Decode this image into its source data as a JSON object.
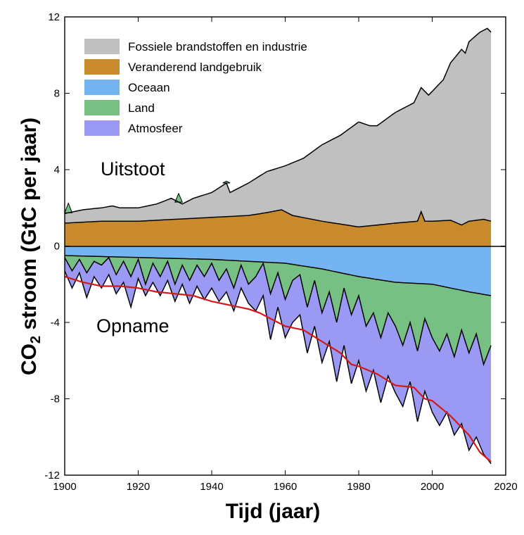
{
  "chart_data": {
    "type": "area",
    "title": "",
    "xlabel": "Tijd (jaar)",
    "ylabel_main": "CO",
    "ylabel_sub": "2",
    "ylabel_rest": " stroom (GtC per jaar)",
    "xlim": [
      1900,
      2020
    ],
    "ylim": [
      -12,
      12
    ],
    "xticks": [
      1900,
      1920,
      1940,
      1960,
      1980,
      2000,
      2020
    ],
    "yticks": [
      -12,
      -8,
      -4,
      0,
      4,
      8,
      12
    ],
    "legend": [
      {
        "name": "Fossiele brandstoffen en industrie",
        "color": "#c0c0c0"
      },
      {
        "name": "Veranderend landgebruik",
        "color": "#c88a2a"
      },
      {
        "name": "Oceaan",
        "color": "#75b4f2"
      },
      {
        "name": "Land",
        "color": "#77c083"
      },
      {
        "name": "Atmosfeer",
        "color": "#9a9af5"
      }
    ],
    "annotations": {
      "emissions": "Uitstoot",
      "uptake": "Opname"
    },
    "land_use_change": {
      "x": [
        1900,
        1910,
        1920,
        1930,
        1940,
        1950,
        1955,
        1959,
        1962,
        1970,
        1980,
        1990,
        1996,
        1997,
        1998,
        2000,
        2005,
        2008,
        2010,
        2014,
        2016
      ],
      "y": [
        1.2,
        1.3,
        1.3,
        1.4,
        1.5,
        1.6,
        1.75,
        1.9,
        1.6,
        1.3,
        1.0,
        1.2,
        1.3,
        1.8,
        1.3,
        1.3,
        1.35,
        1.1,
        1.3,
        1.4,
        1.3
      ]
    },
    "total_emissions": {
      "x": [
        1900,
        1905,
        1910,
        1913,
        1915,
        1920,
        1925,
        1929,
        1932,
        1935,
        1940,
        1944,
        1945,
        1950,
        1955,
        1960,
        1965,
        1970,
        1975,
        1980,
        1983,
        1985,
        1990,
        1995,
        1997,
        1999,
        2000,
        2003,
        2005,
        2008,
        2009,
        2010,
        2013,
        2015,
        2016
      ],
      "y": [
        1.7,
        1.9,
        2.0,
        2.1,
        2.0,
        2.0,
        2.2,
        2.5,
        2.2,
        2.5,
        2.8,
        3.3,
        2.8,
        3.3,
        3.9,
        4.2,
        4.6,
        5.3,
        5.8,
        6.5,
        6.3,
        6.3,
        7.0,
        7.5,
        8.3,
        7.9,
        8.1,
        8.7,
        9.6,
        10.3,
        10.1,
        10.7,
        11.2,
        11.4,
        11.2
      ]
    },
    "ocean_sink": {
      "x": [
        1900,
        1920,
        1940,
        1960,
        1970,
        1980,
        1990,
        2000,
        2010,
        2016
      ],
      "y": [
        -0.5,
        -0.6,
        -0.7,
        -0.9,
        -1.2,
        -1.6,
        -1.9,
        -2.0,
        -2.4,
        -2.6
      ]
    },
    "ocean_land_sink": {
      "x": [
        1900,
        1902,
        1904,
        1906,
        1908,
        1910,
        1912,
        1914,
        1916,
        1918,
        1920,
        1922,
        1924,
        1926,
        1928,
        1930,
        1932,
        1934,
        1936,
        1938,
        1940,
        1942,
        1944,
        1946,
        1948,
        1950,
        1952,
        1954,
        1956,
        1958,
        1960,
        1962,
        1964,
        1966,
        1968,
        1970,
        1972,
        1974,
        1976,
        1978,
        1980,
        1982,
        1984,
        1986,
        1988,
        1990,
        1992,
        1994,
        1996,
        1998,
        2000,
        2002,
        2004,
        2006,
        2008,
        2010,
        2012,
        2014,
        2016
      ],
      "y": [
        -0.6,
        -1.3,
        -0.7,
        -1.4,
        -0.8,
        -1.0,
        -0.6,
        -1.5,
        -0.8,
        -1.6,
        -0.7,
        -2.0,
        -0.9,
        -1.6,
        -0.8,
        -2.0,
        -1.0,
        -1.8,
        -1.0,
        -1.6,
        -0.9,
        -1.8,
        -1.2,
        -2.2,
        -1.0,
        -2.0,
        -1.6,
        -0.9,
        -2.5,
        -1.4,
        -2.8,
        -1.8,
        -1.5,
        -3.2,
        -1.8,
        -3.5,
        -2.4,
        -4.0,
        -2.2,
        -3.6,
        -2.6,
        -4.2,
        -3.5,
        -4.8,
        -3.5,
        -4.2,
        -5.2,
        -4.0,
        -5.5,
        -3.8,
        -4.8,
        -5.5,
        -4.6,
        -5.8,
        -4.4,
        -5.6,
        -4.6,
        -6.2,
        -5.2
      ]
    },
    "total_sink": {
      "x": [
        1900,
        1902,
        1904,
        1906,
        1908,
        1910,
        1912,
        1914,
        1916,
        1918,
        1920,
        1922,
        1924,
        1926,
        1928,
        1930,
        1932,
        1934,
        1936,
        1938,
        1940,
        1942,
        1944,
        1946,
        1948,
        1950,
        1952,
        1954,
        1956,
        1958,
        1960,
        1962,
        1964,
        1966,
        1968,
        1970,
        1972,
        1974,
        1976,
        1978,
        1980,
        1982,
        1984,
        1986,
        1988,
        1990,
        1992,
        1994,
        1996,
        1998,
        2000,
        2002,
        2004,
        2006,
        2008,
        2010,
        2012,
        2014,
        2016
      ],
      "y": [
        -1.3,
        -2.2,
        -1.4,
        -2.7,
        -1.6,
        -2.2,
        -1.5,
        -2.5,
        -1.9,
        -3.2,
        -1.7,
        -2.6,
        -1.9,
        -2.6,
        -1.8,
        -2.9,
        -2.0,
        -3.0,
        -2.1,
        -2.8,
        -2.2,
        -2.9,
        -2.4,
        -3.4,
        -2.2,
        -3.0,
        -3.4,
        -2.6,
        -4.9,
        -3.2,
        -4.8,
        -4.0,
        -3.6,
        -5.6,
        -4.2,
        -6.1,
        -5.0,
        -7.1,
        -5.2,
        -7.2,
        -6.0,
        -7.6,
        -6.5,
        -8.2,
        -6.8,
        -7.7,
        -8.4,
        -7.1,
        -9.2,
        -7.6,
        -8.7,
        -9.4,
        -8.7,
        -9.9,
        -9.3,
        -10.7,
        -10.0,
        -10.9,
        -11.4
      ]
    },
    "emissions_minus_atmosphere": {
      "x": [
        1900,
        1905,
        1910,
        1915,
        1920,
        1925,
        1930,
        1935,
        1940,
        1945,
        1950,
        1953,
        1955,
        1960,
        1965,
        1970,
        1975,
        1978,
        1980,
        1985,
        1990,
        1995,
        1998,
        2000,
        2005,
        2010,
        2013,
        2016
      ],
      "y": [
        -1.6,
        -1.9,
        -2.1,
        -2.1,
        -2.2,
        -2.4,
        -2.5,
        -2.6,
        -2.9,
        -3.1,
        -3.3,
        -3.5,
        -3.7,
        -4.2,
        -4.4,
        -5.0,
        -5.6,
        -6.2,
        -6.3,
        -6.7,
        -7.3,
        -7.4,
        -8.0,
        -8.1,
        -8.9,
        -9.9,
        -10.8,
        -11.3
      ]
    }
  }
}
